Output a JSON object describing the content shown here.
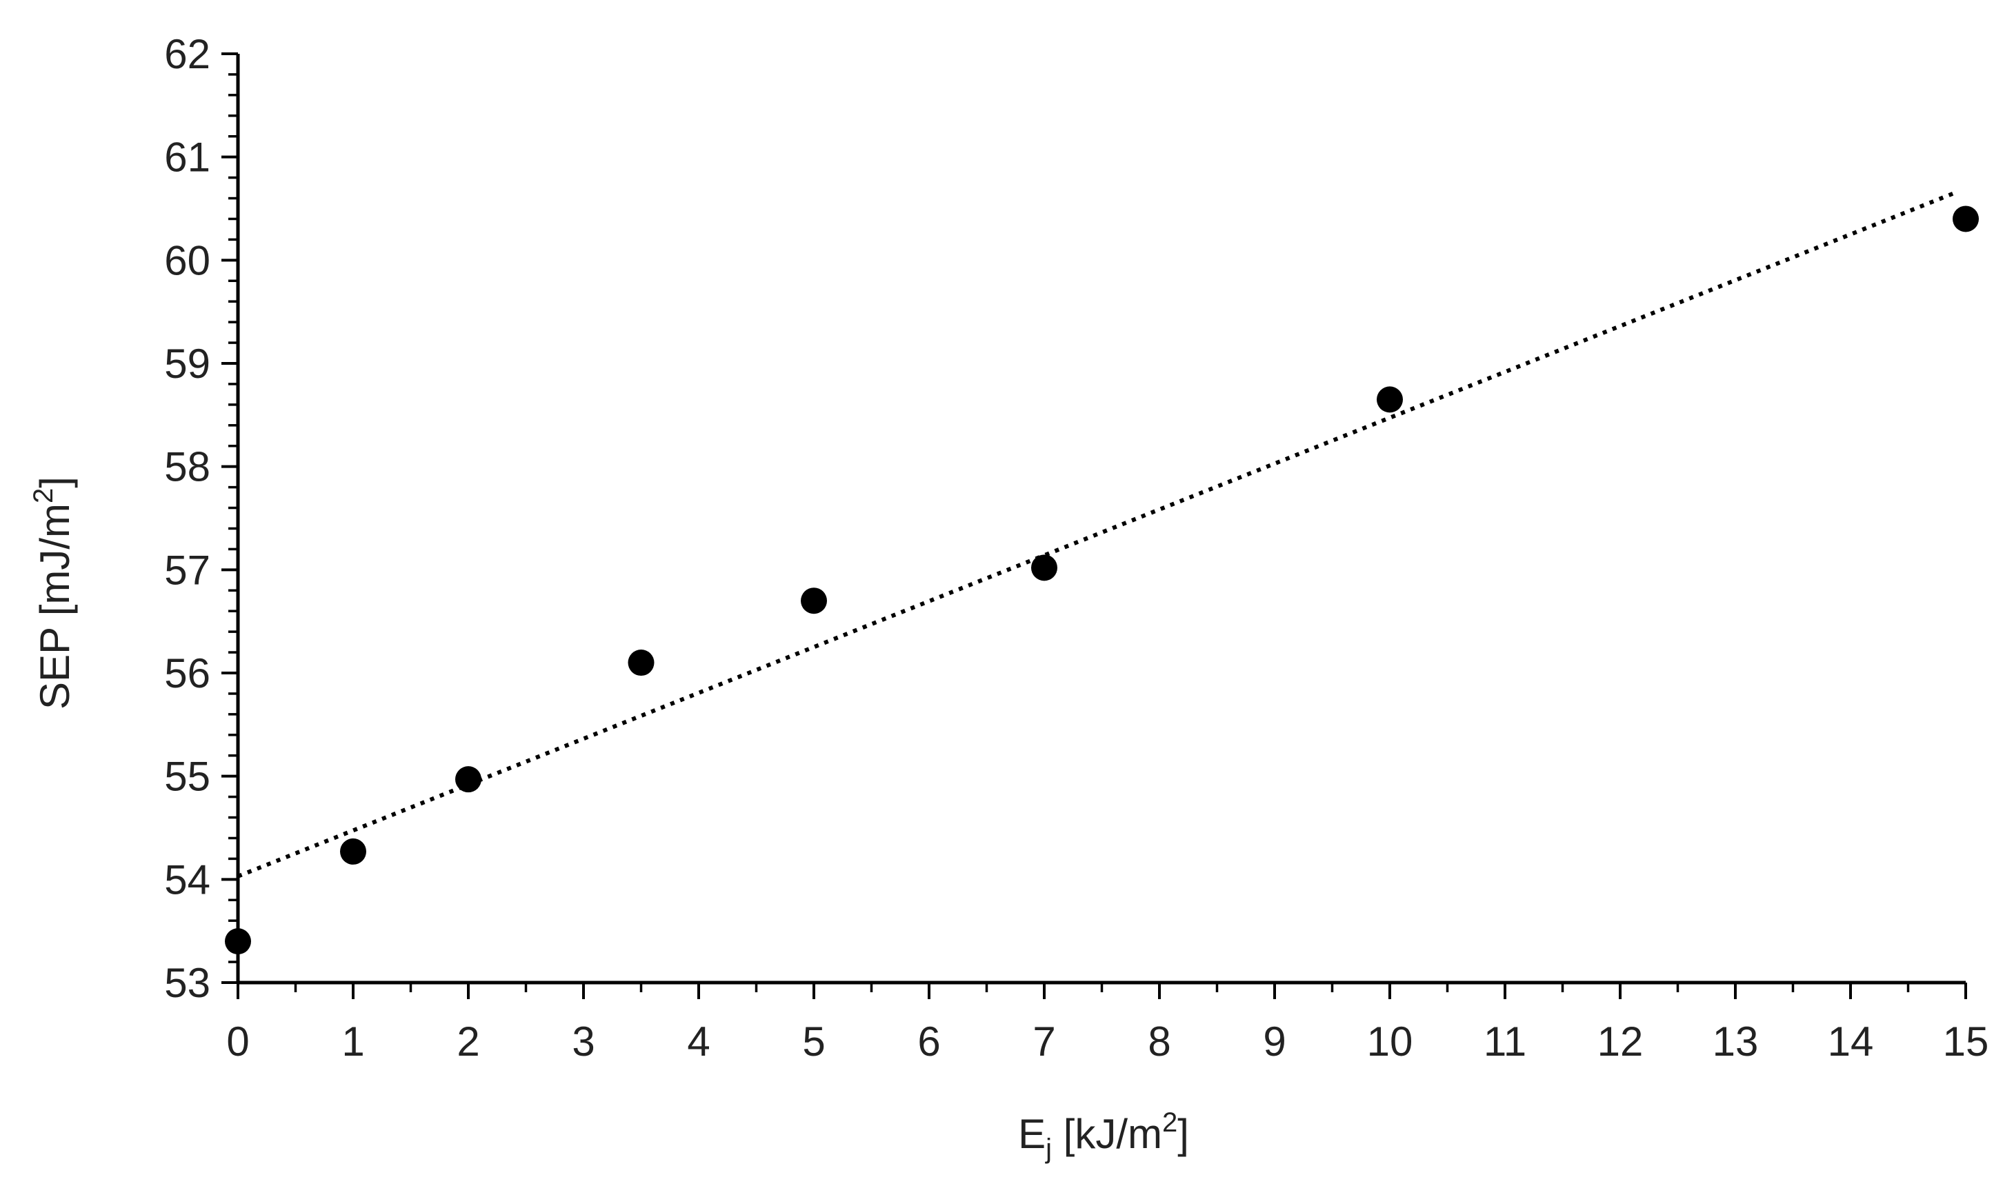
{
  "chart_data": {
    "type": "scatter",
    "title": "",
    "xlabel": {
      "main": "E",
      "subscript": "j",
      "unit_prefix": " [kJ/m",
      "unit_power": "2",
      "unit_suffix": "]"
    },
    "ylabel": {
      "main": "SEP [mJ/m",
      "power": "2",
      "suffix": "]"
    },
    "xlim": [
      0,
      15
    ],
    "ylim": [
      53,
      62
    ],
    "x_ticks": [
      "0",
      "1",
      "2",
      "3",
      "4",
      "5",
      "6",
      "7",
      "8",
      "9",
      "10",
      "11",
      "12",
      "13",
      "14",
      "15"
    ],
    "y_ticks": [
      "53",
      "54",
      "55",
      "56",
      "57",
      "58",
      "59",
      "60",
      "61",
      "62"
    ],
    "x_minor_step": 0.5,
    "y_minor_step": 0.2,
    "grid": false,
    "legend": "none",
    "series": [
      {
        "name": "SEP",
        "marker": "circle",
        "color": "#000000",
        "x": [
          0,
          1,
          2,
          3.5,
          5,
          7,
          10,
          15
        ],
        "y": [
          53.4,
          54.27,
          54.97,
          56.1,
          56.7,
          57.02,
          58.65,
          60.4
        ]
      }
    ],
    "trendline": {
      "type": "linear",
      "style": "dotted",
      "color": "#000000",
      "x_range": [
        0,
        14.9
      ],
      "slope": 0.4443,
      "intercept": 54.03
    }
  }
}
